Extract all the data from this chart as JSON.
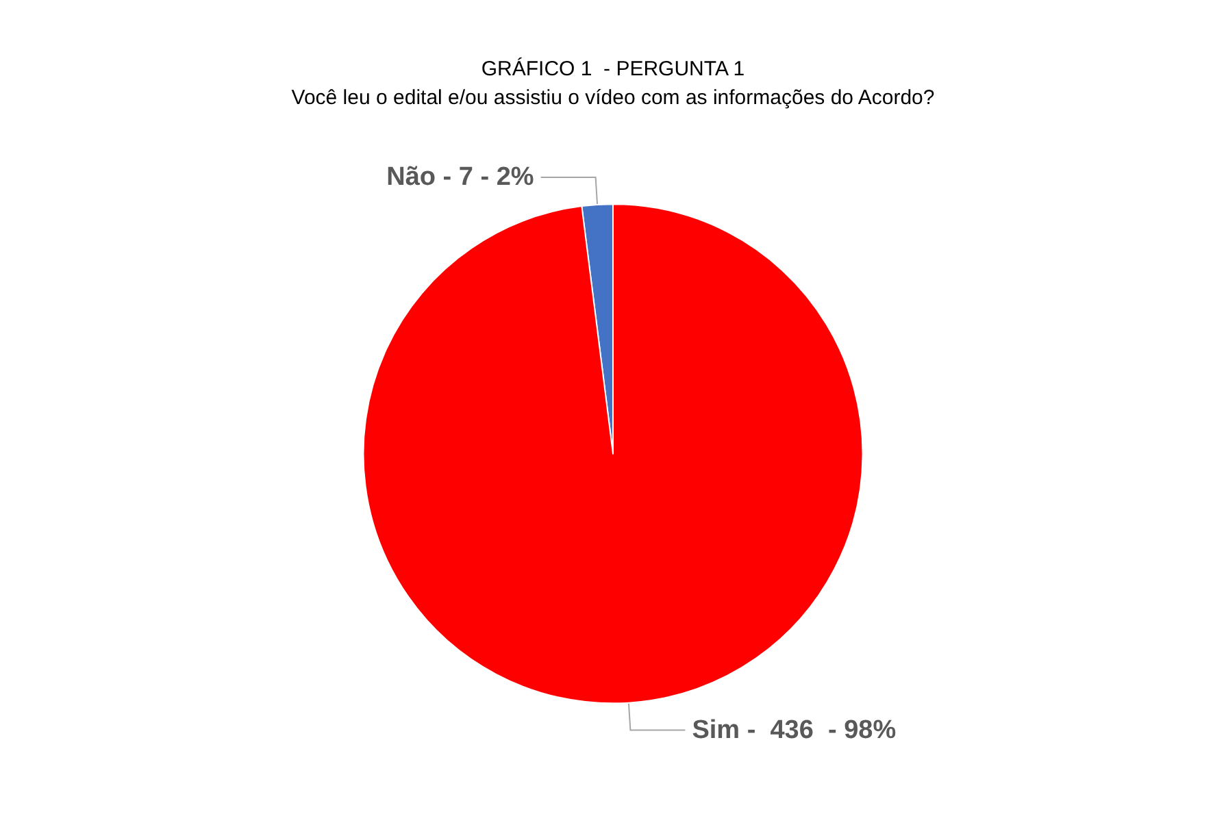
{
  "chart_data": {
    "type": "pie",
    "title": "GRÁFICO 1  - PERGUNTA 1",
    "subtitle": "Você leu o edital e/ou assistiu o vídeo com as informações do Acordo?",
    "categories": [
      "Não - 7 - 2%",
      "Sim -  436  - 98%"
    ],
    "values": [
      2,
      98
    ],
    "colors": [
      "#4472c4",
      "#ff0000"
    ],
    "legend": false
  }
}
